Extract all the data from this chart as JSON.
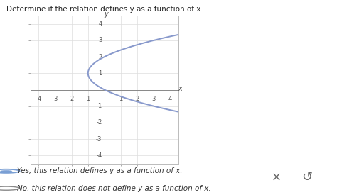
{
  "title": "Determine if the relation defines y as a function of x.",
  "curve_color": "#8899cc",
  "curve_linewidth": 1.4,
  "axis_color": "#888888",
  "grid_color": "#dddddd",
  "xlim": [
    -4.5,
    4.5
  ],
  "ylim": [
    -4.5,
    4.5
  ],
  "xticks": [
    -4,
    -3,
    -2,
    -1,
    1,
    2,
    3,
    4
  ],
  "yticks": [
    -4,
    -3,
    -2,
    -1,
    1,
    2,
    3,
    4
  ],
  "xlabel": "x",
  "ylabel": "y",
  "option1": "Yes, this relation defines y as a function of x.",
  "option2": "No, this relation does not define y as a function of x.",
  "option1_selected": true,
  "bg_color": "#ffffff",
  "plot_bg": "#ffffff",
  "box_color": "#e8e8e8",
  "tick_fontsize": 6,
  "label_fontsize": 7,
  "title_fontsize": 7.5,
  "option_fontsize": 7.5
}
